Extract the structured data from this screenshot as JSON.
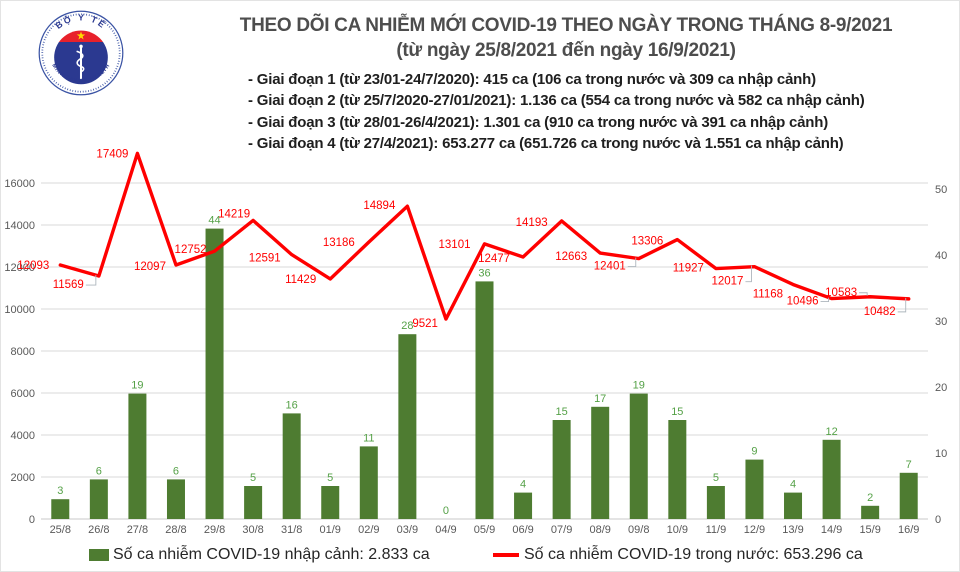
{
  "header": {
    "title_line1": "THEO DÕI CA NHIỄM MỚI COVID-19 THEO NGÀY TRONG THÁNG 8-9/2021",
    "title_line2": "(từ ngày 25/8/2021 đến ngày 16/9/2021)",
    "phases": [
      "- Giai đoạn 1 (từ 23/01-24/7/2020): 415 ca (106 ca trong nước và 309 ca nhập cảnh)",
      "- Giai đoạn 2 (từ 25/7/2020-27/01/2021): 1.136 ca (554 ca trong nước và 582 ca nhập cảnh)",
      "- Giai đoạn 3 (từ 28/01-26/4/2021): 1.301 ca (910 ca trong nước và 391 ca nhập cảnh)",
      "- Giai đoạn 4 (từ 27/4/2021): 653.277 ca (651.726 ca trong nước và 1.551 ca nhập cảnh)"
    ],
    "logo": {
      "top_text": "BỘ Y TẾ",
      "bottom_text": "MINISTRY OF HEALTH"
    }
  },
  "chart_data": {
    "type": "bar",
    "title": "THEO DÕI CA NHIỄM MỚI COVID-19 THEO NGÀY TRONG THÁNG 8-9/2021",
    "subtitle": "(từ ngày 25/8/2021 đến ngày 16/9/2021)",
    "categories": [
      "25/8",
      "26/8",
      "27/8",
      "28/8",
      "29/8",
      "30/8",
      "31/8",
      "01/9",
      "02/9",
      "03/9",
      "04/9",
      "05/9",
      "06/9",
      "07/9",
      "08/9",
      "09/8",
      "10/9",
      "11/9",
      "12/9",
      "13/9",
      "14/9",
      "15/9",
      "16/9"
    ],
    "series": [
      {
        "name": "Số ca nhiễm COVID-19 nhập cảnh",
        "type": "bar",
        "axis": "right",
        "color": "#4e7c31",
        "values": [
          3,
          6,
          19,
          6,
          44,
          5,
          16,
          5,
          11,
          28,
          0,
          36,
          4,
          15,
          17,
          19,
          15,
          5,
          9,
          4,
          12,
          2,
          7
        ]
      },
      {
        "name": "Số ca nhiễm COVID-19 trong nước",
        "type": "line",
        "axis": "left",
        "color": "#ff0000",
        "values": [
          12093,
          11569,
          17409,
          12097,
          12752,
          14219,
          12591,
          11429,
          13186,
          14894,
          9521,
          13101,
          12477,
          14193,
          12663,
          12401,
          13306,
          11927,
          12017,
          11168,
          10496,
          10583,
          10482
        ]
      }
    ],
    "left_axis": {
      "ticks": [
        0,
        2000,
        4000,
        6000,
        8000,
        10000,
        12000,
        14000,
        16000
      ],
      "range": [
        0,
        17500
      ]
    },
    "right_axis": {
      "ticks": [
        0,
        10,
        20,
        30,
        40,
        50
      ],
      "range": [
        0,
        55
      ]
    },
    "grid": true,
    "legend_position": "bottom",
    "legend": [
      {
        "swatch": "bar",
        "label": "Số ca nhiễm COVID-19 nhập cảnh: 2.833 ca"
      },
      {
        "swatch": "line",
        "label": "Số ca nhiễm COVID-19 trong nước: 653.296 ca"
      }
    ],
    "colors": {
      "bar": "#4e7c31",
      "bar_label": "#55a147",
      "line": "#ff0000",
      "line_label": "#ff0000",
      "grid": "#d9d9d9",
      "axis_text": "#595959",
      "baseline": "#c9c9c9",
      "leader": "#aeb6bd"
    }
  }
}
